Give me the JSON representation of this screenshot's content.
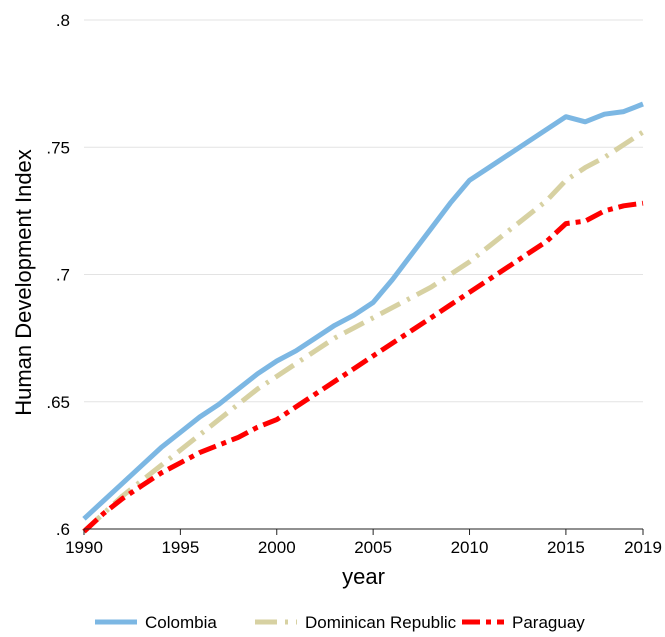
{
  "chart_data": {
    "type": "line",
    "title": "",
    "xlabel": "year",
    "ylabel": "Human Development Index",
    "xlim": [
      1990,
      2019
    ],
    "ylim": [
      0.6,
      0.8
    ],
    "x_ticks": [
      1990,
      1995,
      2000,
      2005,
      2010,
      2015,
      2019
    ],
    "x_tick_labels": [
      "1990",
      "1995",
      "2000",
      "2005",
      "2010",
      "2015",
      "2019"
    ],
    "y_ticks": [
      0.6,
      0.65,
      0.7,
      0.75,
      0.8
    ],
    "y_tick_labels": [
      ".6",
      ".65",
      ".7",
      ".75",
      ".8"
    ],
    "grid": "horizontal",
    "legend_position": "bottom",
    "x": [
      1990,
      1991,
      1992,
      1993,
      1994,
      1995,
      1996,
      1997,
      1998,
      1999,
      2000,
      2001,
      2002,
      2003,
      2004,
      2005,
      2006,
      2007,
      2008,
      2009,
      2010,
      2011,
      2012,
      2013,
      2014,
      2015,
      2016,
      2017,
      2018,
      2019
    ],
    "series": [
      {
        "name": "Colombia",
        "color": "#7cb7e3",
        "style": "solid",
        "values": [
          0.604,
          0.611,
          0.618,
          0.625,
          0.632,
          0.638,
          0.644,
          0.649,
          0.655,
          0.661,
          0.666,
          0.67,
          0.675,
          0.68,
          0.684,
          0.689,
          0.698,
          0.708,
          0.718,
          0.728,
          0.737,
          0.742,
          0.747,
          0.752,
          0.757,
          0.762,
          0.76,
          0.763,
          0.764,
          0.767
        ]
      },
      {
        "name": "Dominican Republic",
        "color": "#d7d1a2",
        "style": "dash-dot",
        "values": [
          0.599,
          0.606,
          0.613,
          0.619,
          0.625,
          0.631,
          0.637,
          0.643,
          0.649,
          0.655,
          0.66,
          0.665,
          0.67,
          0.675,
          0.679,
          0.683,
          0.687,
          0.691,
          0.695,
          0.7,
          0.705,
          0.711,
          0.717,
          0.723,
          0.729,
          0.737,
          0.742,
          0.746,
          0.751,
          0.756
        ]
      },
      {
        "name": "Paraguay",
        "color": "#ff0000",
        "style": "long-dash-dot",
        "values": [
          0.599,
          0.606,
          0.612,
          0.617,
          0.622,
          0.626,
          0.63,
          0.633,
          0.636,
          0.64,
          0.643,
          0.648,
          0.653,
          0.658,
          0.663,
          0.668,
          0.673,
          0.678,
          0.683,
          0.688,
          0.693,
          0.698,
          0.703,
          0.708,
          0.713,
          0.72,
          0.721,
          0.725,
          0.727,
          0.728
        ]
      }
    ]
  }
}
